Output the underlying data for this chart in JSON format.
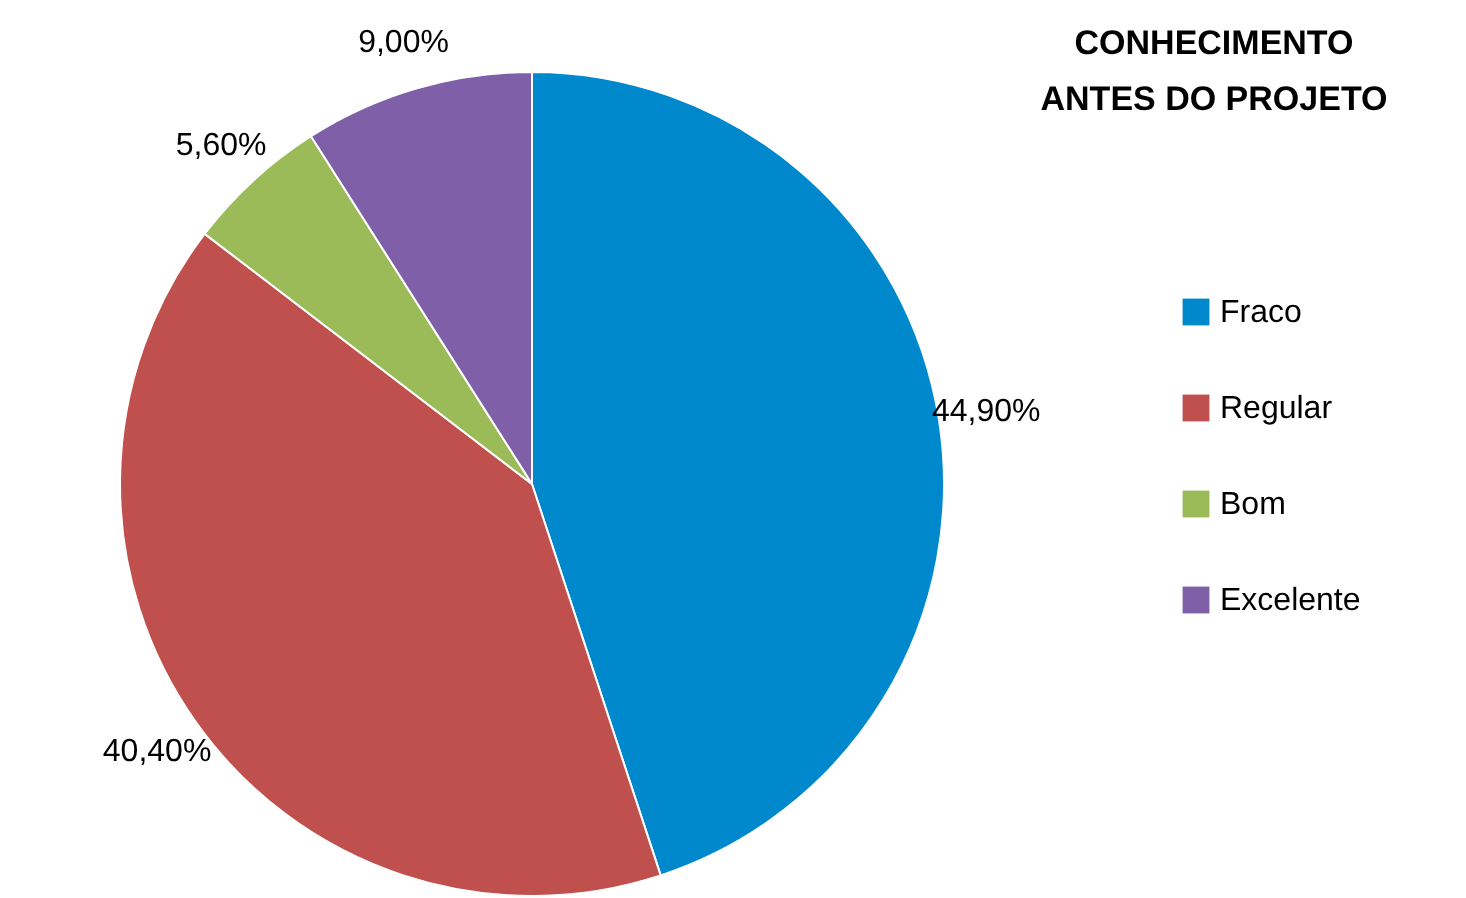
{
  "chart_data": {
    "type": "pie",
    "title": "CONHECIMENTO ANTES DO PROJETO",
    "categories": [
      "Fraco",
      "Regular",
      "Bom",
      "Excelente"
    ],
    "values": [
      44.9,
      40.4,
      5.6,
      9.0
    ],
    "colors": [
      "#0088cc",
      "#c0504d",
      "#9bbb59",
      "#7f5fa8"
    ],
    "value_labels": [
      "44,90%",
      "40,40%",
      "5,60%",
      "9,00%"
    ],
    "legend": "right"
  }
}
